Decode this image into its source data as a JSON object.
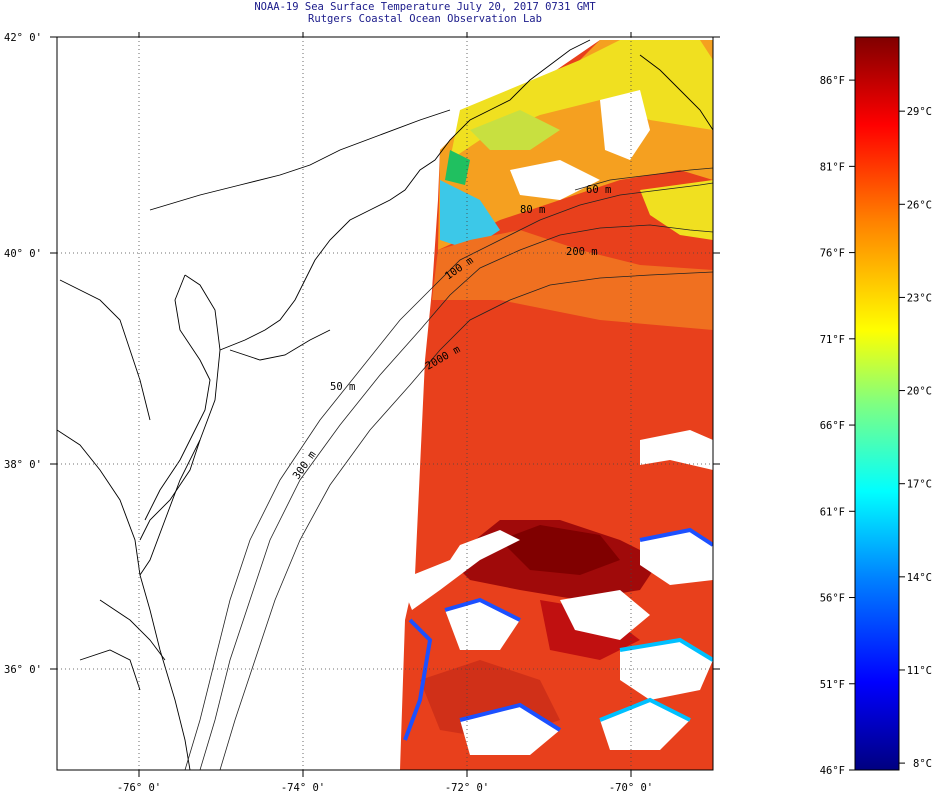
{
  "header": {
    "title": "NOAA-19 Sea Surface Temperature July 20, 2017 0731 GMT",
    "subtitle": "Rutgers Coastal Ocean Observation Lab"
  },
  "axes": {
    "lat_labels": [
      "42° 0'",
      "40° 0'",
      "38° 0'",
      "36° 0'"
    ],
    "lat_values": [
      42,
      40,
      38,
      36
    ],
    "lon_labels": [
      "-76° 0'",
      "-74° 0'",
      "-72° 0'",
      "-70° 0'"
    ],
    "lon_values": [
      -76,
      -74,
      -72,
      -70
    ]
  },
  "depth_contours": [
    "60 m",
    "80 m",
    "100 m",
    "200 m",
    "2000 m",
    "300 m",
    "50 m"
  ],
  "colorbar": {
    "f_labels": [
      "86°F",
      "81°F",
      "76°F",
      "71°F",
      "66°F",
      "61°F",
      "56°F",
      "51°F",
      "46°F"
    ],
    "f_values": [
      86,
      81,
      76,
      71,
      66,
      61,
      56,
      51,
      46
    ],
    "c_labels": [
      "29°C",
      "26°C",
      "23°C",
      "20°C",
      "17°C",
      "14°C",
      "11°C",
      "8°C"
    ],
    "c_values": [
      29,
      26,
      23,
      20,
      17,
      14,
      11,
      8
    ],
    "colors": [
      "#000080",
      "#0000ff",
      "#0080ff",
      "#00ffff",
      "#80ff80",
      "#ffff00",
      "#ff8000",
      "#ff0000",
      "#800000"
    ]
  },
  "colors": {
    "sst_warm": "#e8401c",
    "sst_hot": "#a00a0a",
    "sst_mild": "#f5a020",
    "sst_cool": "#f0e020",
    "coast": "#000000",
    "title_text": "#1a1a8a"
  }
}
